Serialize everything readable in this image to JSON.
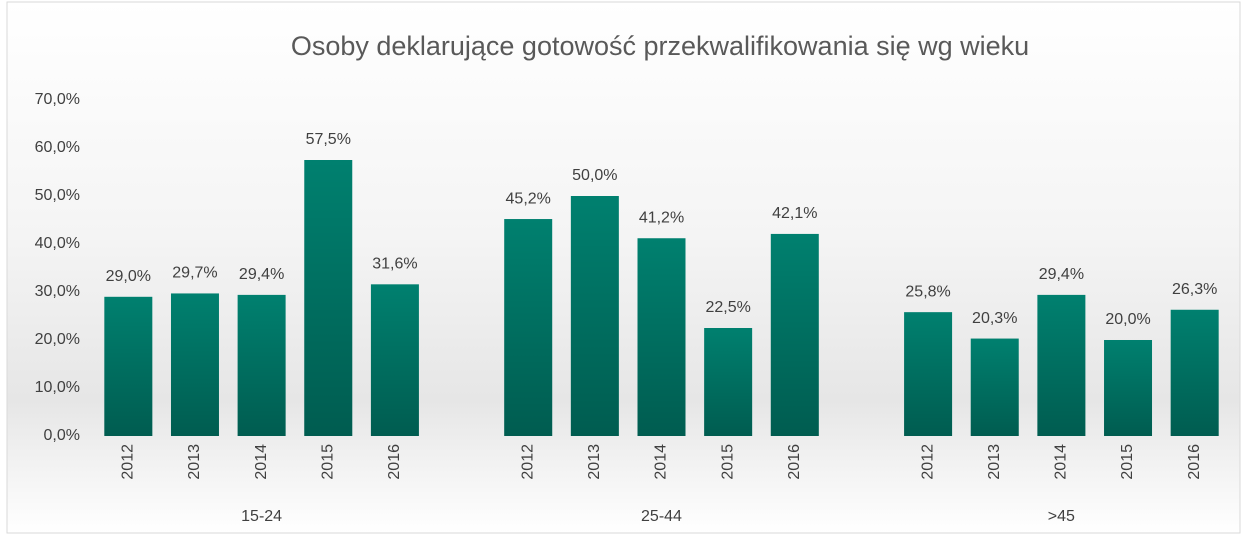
{
  "chart_data": {
    "type": "bar",
    "title": "Osoby deklarujące gotowość przekwalifikowania się wg wieku",
    "color": "#00806f",
    "groups": [
      {
        "name": "15-24",
        "categories": [
          "2012",
          "2013",
          "2014",
          "2015",
          "2016"
        ],
        "values": [
          29.0,
          29.7,
          29.4,
          57.5,
          31.6
        ],
        "value_labels": [
          "29,0%",
          "29,7%",
          "29,4%",
          "57,5%",
          "31,6%"
        ]
      },
      {
        "name": "25-44",
        "categories": [
          "2012",
          "2013",
          "2014",
          "2015",
          "2016"
        ],
        "values": [
          45.2,
          50.0,
          41.2,
          22.5,
          42.1
        ],
        "value_labels": [
          "45,2%",
          "50,0%",
          "41,2%",
          "22,5%",
          "42,1%"
        ]
      },
      {
        "name": ">45",
        "categories": [
          "2012",
          "2013",
          "2014",
          "2015",
          "2016"
        ],
        "values": [
          25.8,
          20.3,
          29.4,
          20.0,
          26.3
        ],
        "value_labels": [
          "25,8%",
          "20,3%",
          "29,4%",
          "20,0%",
          "26,3%"
        ]
      }
    ],
    "ylim": [
      0,
      70
    ],
    "yticks": [
      {
        "value": 0,
        "label": "0,0%"
      },
      {
        "value": 10,
        "label": "10,0%"
      },
      {
        "value": 20,
        "label": "20,0%"
      },
      {
        "value": 30,
        "label": "30,0%"
      },
      {
        "value": 40,
        "label": "40,0%"
      },
      {
        "value": 50,
        "label": "50,0%"
      },
      {
        "value": 60,
        "label": "60,0%"
      },
      {
        "value": 70,
        "label": "70,0%"
      }
    ],
    "grid": false
  }
}
